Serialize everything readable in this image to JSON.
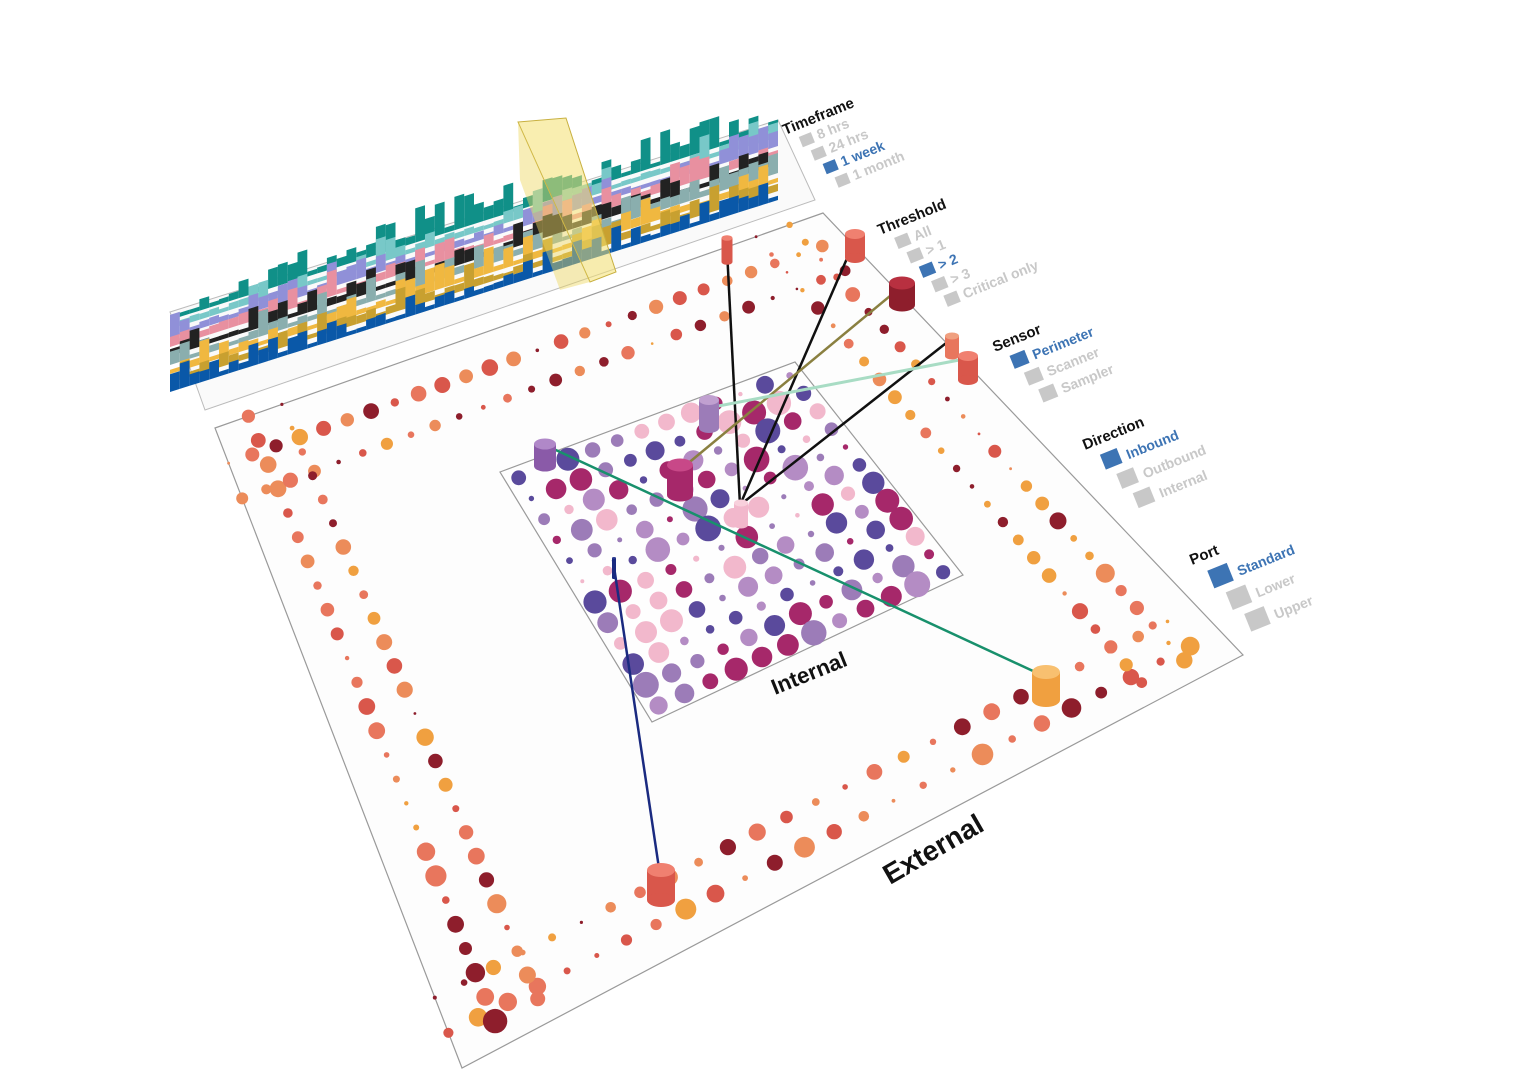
{
  "controls": {
    "timeframe": {
      "title": "Timeframe",
      "options": [
        "8 hrs",
        "24 hrs",
        "1 week",
        "1 month"
      ],
      "selected": "1 week"
    },
    "threshold": {
      "title": "Threshold",
      "options": [
        "All",
        "> 1",
        "> 2",
        "> 3",
        "Critical only"
      ],
      "selected": "> 2"
    },
    "sensor": {
      "title": "Sensor",
      "options": [
        "Perimeter",
        "Scanner",
        "Sampler"
      ],
      "selected": "Perimeter"
    },
    "direction": {
      "title": "Direction",
      "options": [
        "Inbound",
        "Outbound",
        "Internal"
      ],
      "selected": "Inbound"
    },
    "port": {
      "title": "Port",
      "options": [
        "Standard",
        "Lower",
        "Upper"
      ],
      "selected": "Standard"
    }
  },
  "labels": {
    "internal": "Internal",
    "external": "External"
  },
  "colors": {
    "active_option": "#3d74b4",
    "inactive_option": "#c8c8c8",
    "external_nodes": [
      "#8e1e2c",
      "#d9574b",
      "#e8765d",
      "#f0a040",
      "#ec8c5a"
    ],
    "internal_nodes": [
      "#5a4a9c",
      "#9c7cb8",
      "#b48cc4",
      "#a6286a",
      "#f2b8cc"
    ],
    "timeline_series": [
      "#0a58a8",
      "#c8a030",
      "#f0b840",
      "#8aaeae",
      "#222222",
      "#e890a0",
      "#9090d8",
      "#78c8c8",
      "#109088"
    ],
    "timeline_selection": "#f4e070",
    "links": [
      "#101010",
      "#8a8040",
      "#a8dcc4",
      "#18906c",
      "#1a2a80"
    ]
  }
}
